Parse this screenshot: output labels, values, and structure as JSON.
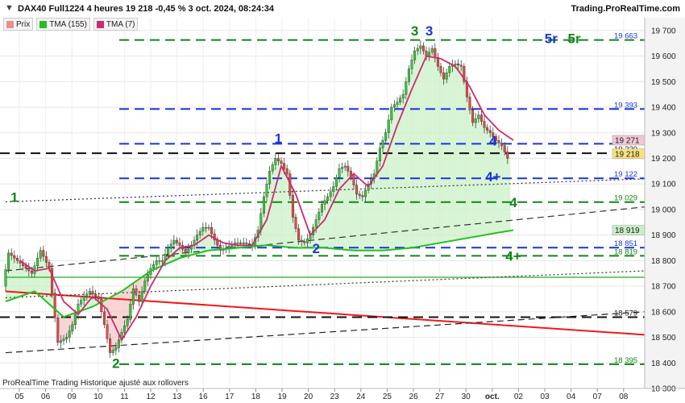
{
  "header": {
    "title": "DAX40 Full1224 4 heures 19 218 -0,45 % 3 oct. 2024, 08:24:34",
    "site": "Trading.ProRealTime.com"
  },
  "legend": [
    {
      "label": "Prix",
      "color": "#e9908e"
    },
    {
      "label": "TMA (155)",
      "color": "#22c022"
    },
    {
      "label": "TMA (7)",
      "color": "#d0286e"
    }
  ],
  "footer": "ProRealTime Trading  Historique ajusté aux rollovers",
  "chart_data": {
    "type": "candlestick",
    "ylim": [
      18300,
      19750
    ],
    "y_ticks": [
      18300,
      18400,
      18500,
      18600,
      18700,
      18800,
      18900,
      19000,
      19100,
      19200,
      19300,
      19400,
      19500,
      19600,
      19700
    ],
    "y_tick_labels": [
      "18 300",
      "18 400",
      "18 500",
      "18 600",
      "18 700",
      "18 800",
      "18 900",
      "19 000",
      "19 100",
      "19 200",
      "19 300",
      "19 400",
      "19 500",
      "19 600",
      "19 700"
    ],
    "x_ticks": [
      "05",
      "06",
      "09",
      "10",
      "11",
      "12",
      "13",
      "16",
      "17",
      "18",
      "19",
      "20",
      "23",
      "24",
      "25",
      "26",
      "27",
      "30",
      "oct.",
      "02",
      "03",
      "04",
      "07",
      "08"
    ],
    "price_path": [
      [
        0,
        18700
      ],
      [
        2,
        18830
      ],
      [
        5,
        18800
      ],
      [
        8,
        18770
      ],
      [
        10,
        18750
      ],
      [
        13,
        18840
      ],
      [
        16,
        18770
      ],
      [
        19,
        18480
      ],
      [
        22,
        18500
      ],
      [
        24,
        18550
      ],
      [
        26,
        18630
      ],
      [
        28,
        18660
      ],
      [
        30,
        18680
      ],
      [
        33,
        18650
      ],
      [
        35,
        18550
      ],
      [
        37,
        18440
      ],
      [
        39,
        18460
      ],
      [
        41,
        18520
      ],
      [
        43,
        18570
      ],
      [
        45,
        18690
      ],
      [
        47,
        18640
      ],
      [
        49,
        18720
      ],
      [
        51,
        18770
      ],
      [
        53,
        18800
      ],
      [
        55,
        18800
      ],
      [
        57,
        18850
      ],
      [
        59,
        18880
      ],
      [
        61,
        18860
      ],
      [
        63,
        18830
      ],
      [
        65,
        18860
      ],
      [
        67,
        18900
      ],
      [
        69,
        18930
      ],
      [
        71,
        18930
      ],
      [
        73,
        18880
      ],
      [
        75,
        18840
      ],
      [
        77,
        18850
      ],
      [
        80,
        18870
      ],
      [
        83,
        18870
      ],
      [
        86,
        18860
      ],
      [
        88,
        18920
      ],
      [
        90,
        19050
      ],
      [
        92,
        19150
      ],
      [
        94,
        19200
      ],
      [
        96,
        19180
      ],
      [
        98,
        19140
      ],
      [
        100,
        18970
      ],
      [
        102,
        18880
      ],
      [
        104,
        18870
      ],
      [
        106,
        18900
      ],
      [
        108,
        18960
      ],
      [
        110,
        19020
      ],
      [
        112,
        19050
      ],
      [
        114,
        19090
      ],
      [
        116,
        19160
      ],
      [
        118,
        19170
      ],
      [
        120,
        19130
      ],
      [
        122,
        19060
      ],
      [
        124,
        19050
      ],
      [
        126,
        19100
      ],
      [
        128,
        19140
      ],
      [
        130,
        19240
      ],
      [
        132,
        19300
      ],
      [
        134,
        19400
      ],
      [
        136,
        19420
      ],
      [
        138,
        19450
      ],
      [
        140,
        19550
      ],
      [
        142,
        19620
      ],
      [
        144,
        19640
      ],
      [
        146,
        19600
      ],
      [
        148,
        19630
      ],
      [
        150,
        19560
      ],
      [
        152,
        19510
      ],
      [
        154,
        19560
      ],
      [
        156,
        19570
      ],
      [
        158,
        19560
      ],
      [
        160,
        19440
      ],
      [
        162,
        19340
      ],
      [
        164,
        19370
      ],
      [
        166,
        19320
      ],
      [
        168,
        19300
      ],
      [
        170,
        19270
      ],
      [
        172,
        19250
      ],
      [
        174,
        19200
      ]
    ],
    "tma155": [
      [
        0,
        18640
      ],
      [
        10,
        18680
      ],
      [
        20,
        18580
      ],
      [
        30,
        18620
      ],
      [
        40,
        18680
      ],
      [
        50,
        18760
      ],
      [
        60,
        18810
      ],
      [
        70,
        18840
      ],
      [
        80,
        18850
      ],
      [
        90,
        18860
      ],
      [
        100,
        18850
      ],
      [
        110,
        18850
      ],
      [
        120,
        18840
      ],
      [
        130,
        18840
      ],
      [
        140,
        18850
      ],
      [
        150,
        18870
      ],
      [
        160,
        18890
      ],
      [
        170,
        18910
      ],
      [
        175,
        18919
      ]
    ],
    "tma7": [
      [
        5,
        18800
      ],
      [
        10,
        18760
      ],
      [
        15,
        18770
      ],
      [
        20,
        18640
      ],
      [
        25,
        18590
      ],
      [
        30,
        18660
      ],
      [
        35,
        18610
      ],
      [
        40,
        18490
      ],
      [
        45,
        18580
      ],
      [
        50,
        18700
      ],
      [
        55,
        18800
      ],
      [
        60,
        18850
      ],
      [
        65,
        18860
      ],
      [
        70,
        18900
      ],
      [
        75,
        18870
      ],
      [
        80,
        18860
      ],
      [
        85,
        18860
      ],
      [
        90,
        18960
      ],
      [
        95,
        19170
      ],
      [
        100,
        19060
      ],
      [
        105,
        18900
      ],
      [
        110,
        18960
      ],
      [
        115,
        19080
      ],
      [
        120,
        19140
      ],
      [
        125,
        19090
      ],
      [
        130,
        19170
      ],
      [
        135,
        19330
      ],
      [
        140,
        19470
      ],
      [
        145,
        19600
      ],
      [
        150,
        19590
      ],
      [
        155,
        19560
      ],
      [
        160,
        19480
      ],
      [
        165,
        19370
      ],
      [
        170,
        19310
      ],
      [
        175,
        19271
      ]
    ],
    "levels": [
      {
        "value": 19663,
        "label": "19 663",
        "label_color": "#1a35d8",
        "line_color": "#11851a",
        "dash": "long"
      },
      {
        "value": 19393,
        "label": "19 393",
        "label_color": "#1a35d8",
        "line_color": "#1a35d8",
        "dash": "long"
      },
      {
        "value": 19257,
        "label": "19 257",
        "label_color": "#1a35d8",
        "line_color": "#1a35d8",
        "dash": "long"
      },
      {
        "value": 19220,
        "label": "19 220",
        "label_color": "#222222",
        "line_color": "#111111",
        "dash": "long"
      },
      {
        "value": 19122,
        "label": "19 122",
        "label_color": "#1a35d8",
        "line_color": "#1a35d8",
        "dash": "long"
      },
      {
        "value": 19029,
        "label": "19 029",
        "label_color": "#11851a",
        "line_color": "#11851a",
        "dash": "long"
      },
      {
        "value": 18851,
        "label": "18 851",
        "label_color": "#1a35d8",
        "line_color": "#1a35d8",
        "dash": "long"
      },
      {
        "value": 18819,
        "label": "18 819",
        "label_color": "#11851a",
        "line_color": "#11851a",
        "dash": "long"
      },
      {
        "value": 18579,
        "label": "18 579",
        "label_color": "#222222",
        "line_color": "#111111",
        "dash": "long"
      },
      {
        "value": 18395,
        "label": "18 395",
        "label_color": "#11851a",
        "line_color": "#11851a",
        "dash": "long"
      }
    ],
    "price_boxes": [
      {
        "value": 19271,
        "label": "19 271",
        "bg": "#f2c6d4",
        "fg": "#222222"
      },
      {
        "value": 19218,
        "label": "19 218",
        "bg": "#f7e27c",
        "fg": "#222222"
      },
      {
        "value": 18919,
        "label": "18 919",
        "bg": "#c8f0c8",
        "fg": "#222222"
      }
    ],
    "trendlines": [
      {
        "from": [
          0,
          18680
        ],
        "to": [
          250,
          18510
        ],
        "color": "#ee1a1a",
        "style": "solid"
      },
      {
        "from": [
          0,
          18735
        ],
        "to": [
          250,
          18735
        ],
        "color": "#22aa22",
        "style": "solid"
      },
      {
        "from": [
          0,
          18440
        ],
        "to": [
          250,
          18600
        ],
        "color": "#222222",
        "style": "dash"
      },
      {
        "from": [
          0,
          18655
        ],
        "to": [
          250,
          18760
        ],
        "color": "#333333",
        "style": "dot"
      },
      {
        "from": [
          0,
          18760
        ],
        "to": [
          250,
          19010
        ],
        "color": "#333333",
        "style": "dash"
      },
      {
        "from": [
          0,
          19030
        ],
        "to": [
          250,
          19120
        ],
        "color": "#333333",
        "style": "dot"
      }
    ],
    "wave_labels": [
      {
        "text": "1",
        "bar": 3,
        "y": 19030,
        "color": "#11851a"
      },
      {
        "text": "2",
        "bar": 38,
        "y": 18380,
        "color": "#11851a"
      },
      {
        "text": "1",
        "bar": 94,
        "y": 19260,
        "color": "#1a35d8"
      },
      {
        "text": "2",
        "bar": 107,
        "y": 18830,
        "color": "#1a35d8"
      },
      {
        "text": "3",
        "bar": 141,
        "y": 19680,
        "color": "#11851a"
      },
      {
        "text": "3",
        "bar": 146,
        "y": 19680,
        "color": "#1a35d8"
      },
      {
        "text": "4",
        "bar": 168,
        "y": 19250,
        "color": "#1a35d8"
      },
      {
        "text": "4+",
        "bar": 168,
        "y": 19110,
        "color": "#1a35d8"
      },
      {
        "text": "4",
        "bar": 175,
        "y": 19010,
        "color": "#11851a"
      },
      {
        "text": "4+",
        "bar": 175,
        "y": 18800,
        "color": "#11851a"
      },
      {
        "text": "5r",
        "bar": 188,
        "y": 19650,
        "color": "#1a35d8"
      },
      {
        "text": "5r",
        "bar": 196,
        "y": 19650,
        "color": "#11851a"
      }
    ]
  }
}
